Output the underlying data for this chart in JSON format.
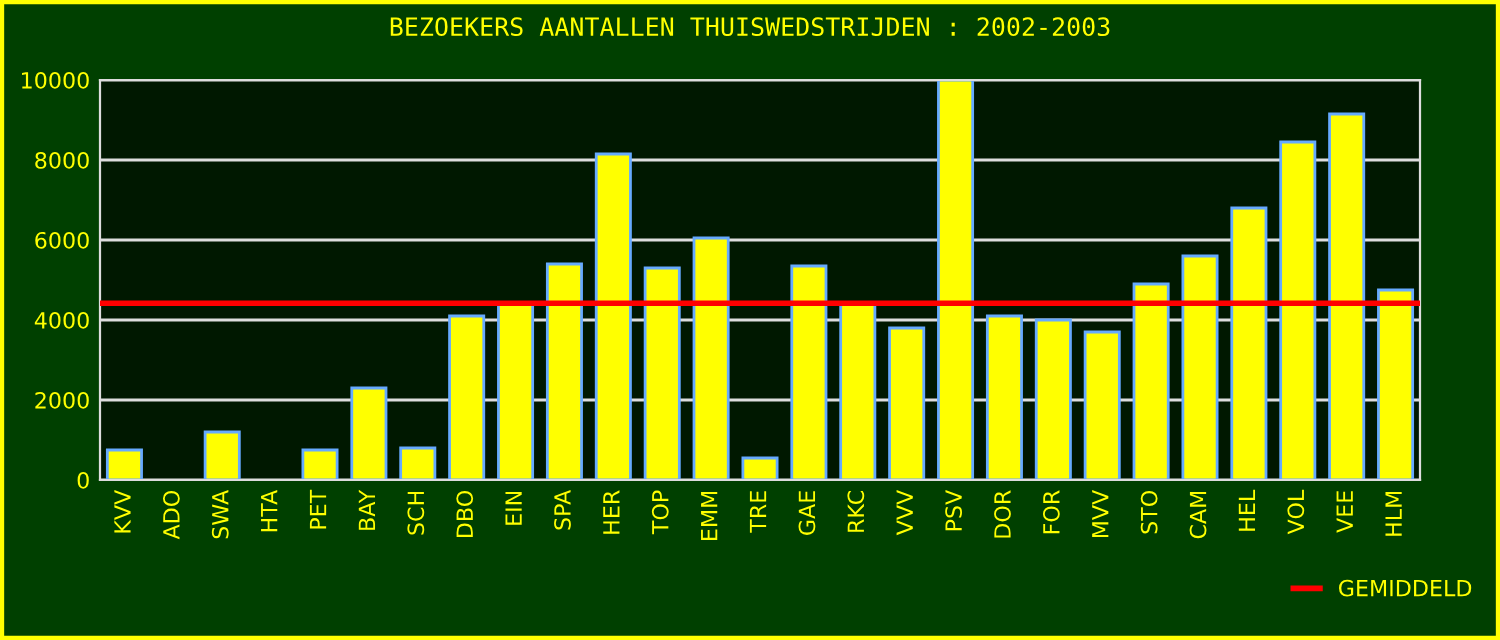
{
  "chart_data": {
    "type": "bar",
    "title": "BEZOEKERS AANTALLEN THUISWEDSTRIJDEN : 2002-2003",
    "categories": [
      "KVV",
      "ADO",
      "SWA",
      "HTA",
      "PET",
      "BAY",
      "SCH",
      "DBO",
      "EIN",
      "SPA",
      "HER",
      "TOP",
      "EMM",
      "TRE",
      "GAE",
      "RKC",
      "VVV",
      "PSV",
      "DOR",
      "FOR",
      "MVV",
      "STO",
      "CAM",
      "HEL",
      "VOL",
      "VEE",
      "HLM"
    ],
    "values": [
      750,
      null,
      1200,
      null,
      750,
      2300,
      800,
      4100,
      4400,
      5400,
      8150,
      5300,
      6050,
      550,
      5350,
      4400,
      3800,
      10000,
      4100,
      4000,
      3700,
      4900,
      5600,
      6800,
      8450,
      9150,
      4750
    ],
    "color": "#ffff00",
    "ylim": [
      0,
      10000
    ],
    "yticks": [
      0,
      2000,
      4000,
      6000,
      8000,
      10000
    ],
    "grid": "y",
    "legend": "bottom right",
    "ref_lines": [
      {
        "axis": "y",
        "value": 4420,
        "label": "GEMIDDELD",
        "color": "#ff0000"
      }
    ]
  }
}
